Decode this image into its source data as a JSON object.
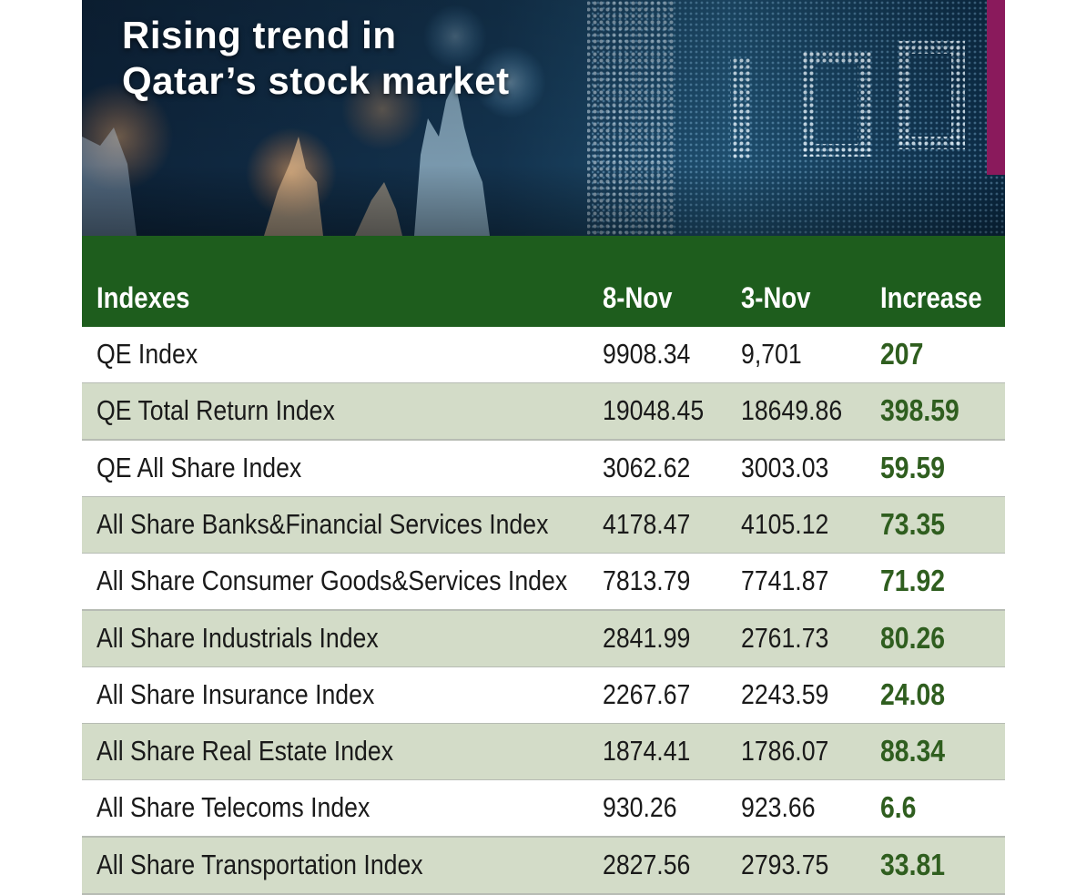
{
  "title": "Rising trend in Qatar’s stock market",
  "title_lines": [
    "Rising trend in",
    "Qatar’s stock market"
  ],
  "colors": {
    "header_green": "#1e5d1d",
    "row_alt": "#d3dcc8",
    "increase_text": "#2f5e1f",
    "accent": "#8a1a5c"
  },
  "chart_data": {
    "type": "table",
    "title": "Rising trend in Qatar’s stock market",
    "columns": [
      "Indexes",
      "8-Nov",
      "3-Nov",
      "Increase"
    ],
    "rows": [
      {
        "index": "QE Index",
        "nov8": "9908.34",
        "nov3": "9,701",
        "increase": "207"
      },
      {
        "index": "QE Total Return Index",
        "nov8": "19048.45",
        "nov3": "18649.86",
        "increase": "398.59"
      },
      {
        "index": "QE All Share Index",
        "nov8": "3062.62",
        "nov3": "3003.03",
        "increase": "59.59"
      },
      {
        "index": "All Share Banks&Financial Services Index",
        "nov8": "4178.47",
        "nov3": "4105.12",
        "increase": "73.35"
      },
      {
        "index": "All Share Consumer Goods&Services Index",
        "nov8": "7813.79",
        "nov3": "7741.87",
        "increase": "71.92"
      },
      {
        "index": "All Share Industrials Index",
        "nov8": "2841.99",
        "nov3": "2761.73",
        "increase": "80.26"
      },
      {
        "index": "All Share Insurance Index",
        "nov8": "2267.67",
        "nov3": "2243.59",
        "increase": "24.08"
      },
      {
        "index": "All Share Real Estate Index",
        "nov8": "1874.41",
        "nov3": "1786.07",
        "increase": "88.34"
      },
      {
        "index": "All Share Telecoms Index",
        "nov8": "930.26",
        "nov3": "923.66",
        "increase": "6.6"
      },
      {
        "index": "All Share Transportation Index",
        "nov8": "2827.56",
        "nov3": "2793.75",
        "increase": "33.81"
      }
    ]
  }
}
